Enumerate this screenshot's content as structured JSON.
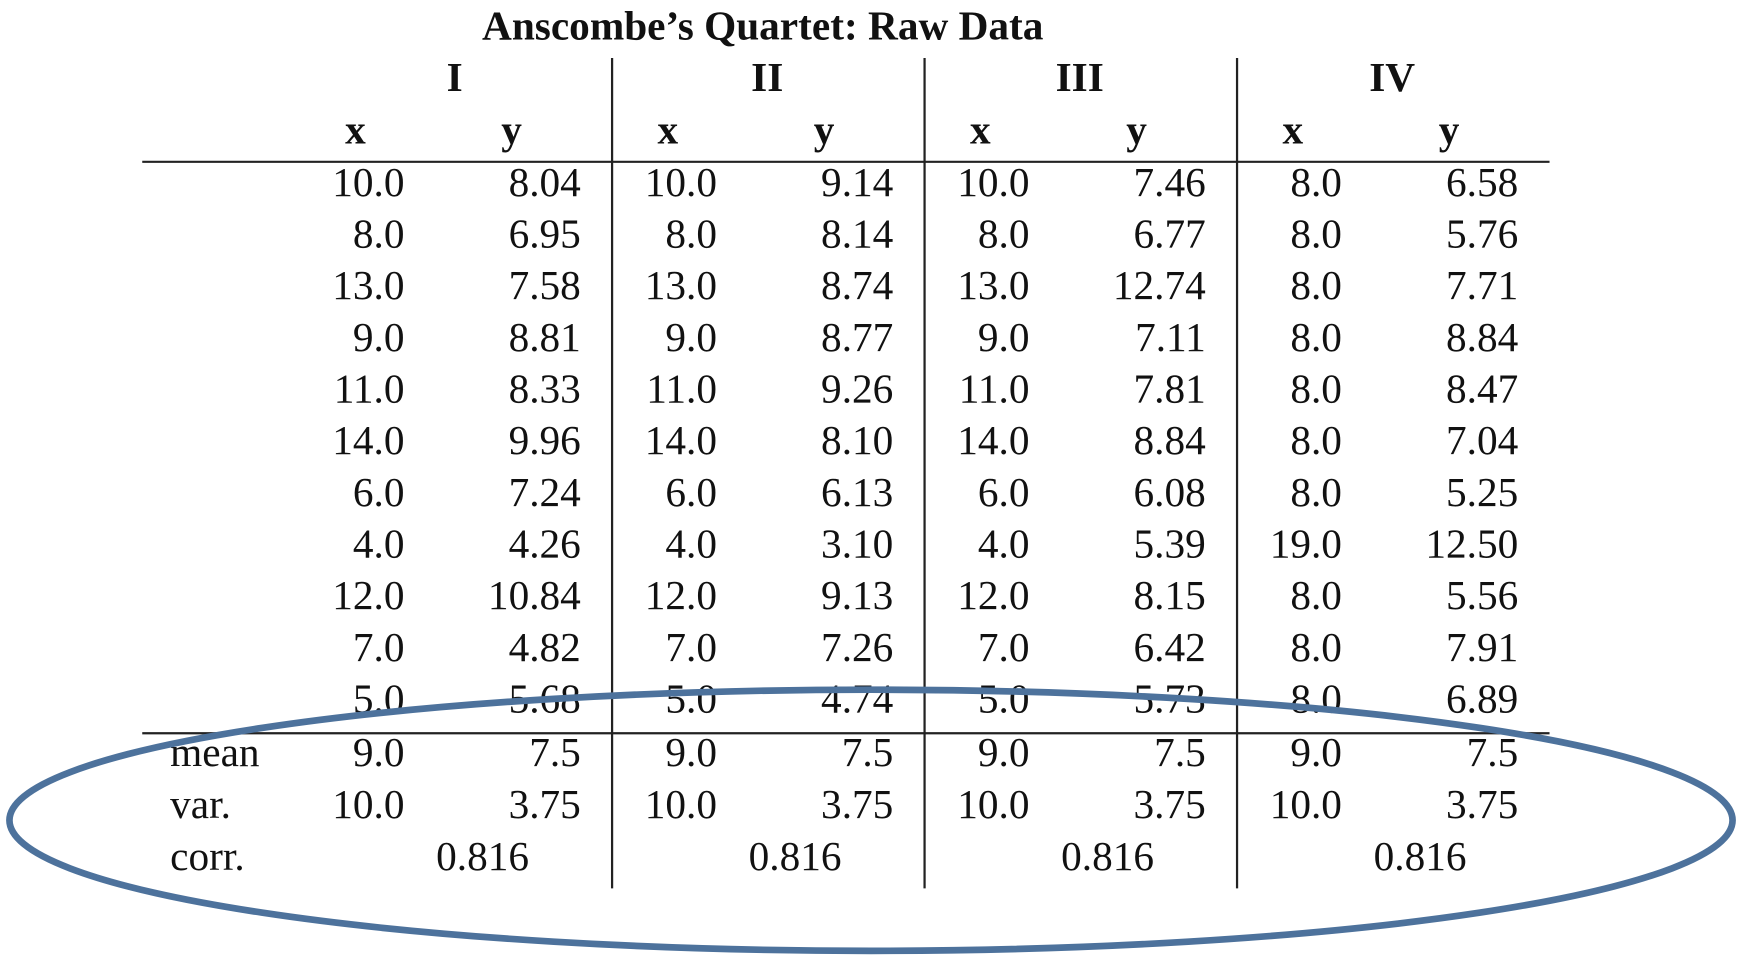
{
  "title": "Anscombe’s Quartet: Raw Data",
  "table": {
    "groups": [
      "I",
      "II",
      "III",
      "IV"
    ],
    "columns": [
      "x",
      "y",
      "x",
      "y",
      "x",
      "y",
      "x",
      "y"
    ],
    "rows": [
      [
        "10.0",
        "8.04",
        "10.0",
        "9.14",
        "10.0",
        "7.46",
        "8.0",
        "6.58"
      ],
      [
        "8.0",
        "6.95",
        "8.0",
        "8.14",
        "8.0",
        "6.77",
        "8.0",
        "5.76"
      ],
      [
        "13.0",
        "7.58",
        "13.0",
        "8.74",
        "13.0",
        "12.74",
        "8.0",
        "7.71"
      ],
      [
        "9.0",
        "8.81",
        "9.0",
        "8.77",
        "9.0",
        "7.11",
        "8.0",
        "8.84"
      ],
      [
        "11.0",
        "8.33",
        "11.0",
        "9.26",
        "11.0",
        "7.81",
        "8.0",
        "8.47"
      ],
      [
        "14.0",
        "9.96",
        "14.0",
        "8.10",
        "14.0",
        "8.84",
        "8.0",
        "7.04"
      ],
      [
        "6.0",
        "7.24",
        "6.0",
        "6.13",
        "6.0",
        "6.08",
        "8.0",
        "5.25"
      ],
      [
        "4.0",
        "4.26",
        "4.0",
        "3.10",
        "4.0",
        "5.39",
        "19.0",
        "12.50"
      ],
      [
        "12.0",
        "10.84",
        "12.0",
        "9.13",
        "12.0",
        "8.15",
        "8.0",
        "5.56"
      ],
      [
        "7.0",
        "4.82",
        "7.0",
        "7.26",
        "7.0",
        "6.42",
        "8.0",
        "7.91"
      ],
      [
        "5.0",
        "5.68",
        "5.0",
        "4.74",
        "5.0",
        "5.73",
        "8.0",
        "6.89"
      ]
    ],
    "summary": [
      {
        "label": "mean",
        "values": [
          "9.0",
          "7.5",
          "9.0",
          "7.5",
          "9.0",
          "7.5",
          "9.0",
          "7.5"
        ]
      },
      {
        "label": "var.",
        "values": [
          "10.0",
          "3.75",
          "10.0",
          "3.75",
          "10.0",
          "3.75",
          "10.0",
          "3.75"
        ]
      },
      {
        "label": "corr.",
        "values": [
          "0.816",
          "0.816",
          "0.816",
          "0.816"
        ]
      }
    ]
  }
}
